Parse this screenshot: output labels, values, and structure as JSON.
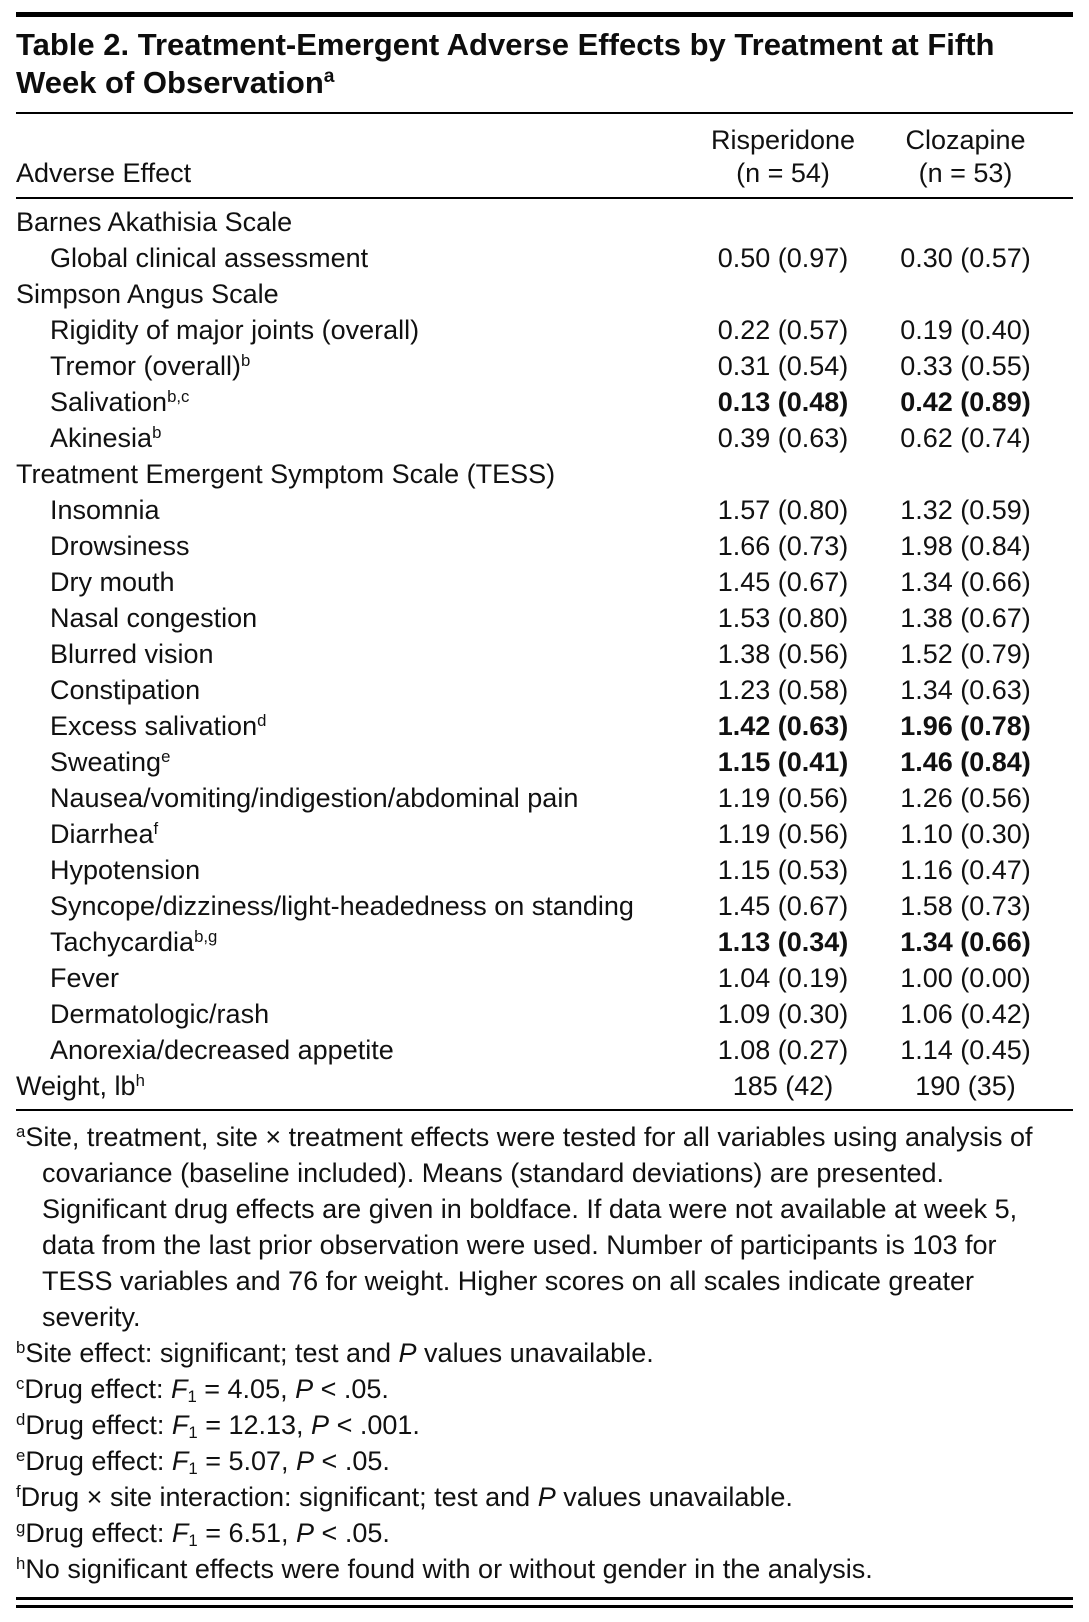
{
  "table": {
    "title": "Table 2. Treatment-Emergent Adverse Effects by Treatment at Fifth Week of Observation",
    "title_sup": "a",
    "header": {
      "adverse_effect": "Adverse Effect",
      "risperidone": "Risperidone",
      "risperidone_n": "(n = 54)",
      "clozapine": "Clozapine",
      "clozapine_n": "(n = 53)"
    },
    "rows": [
      {
        "label": "Barnes Akathisia Scale",
        "sup": "",
        "indent": 0,
        "risperidone": "",
        "clozapine": "",
        "bold": false
      },
      {
        "label": "Global clinical assessment",
        "sup": "",
        "indent": 1,
        "risperidone": "0.50 (0.97)",
        "clozapine": "0.30 (0.57)",
        "bold": false
      },
      {
        "label": "Simpson Angus Scale",
        "sup": "",
        "indent": 0,
        "risperidone": "",
        "clozapine": "",
        "bold": false
      },
      {
        "label": "Rigidity of major joints (overall)",
        "sup": "",
        "indent": 1,
        "risperidone": "0.22 (0.57)",
        "clozapine": "0.19 (0.40)",
        "bold": false
      },
      {
        "label": "Tremor (overall)",
        "sup": "b",
        "indent": 1,
        "risperidone": "0.31 (0.54)",
        "clozapine": "0.33 (0.55)",
        "bold": false
      },
      {
        "label": "Salivation",
        "sup": "b,c",
        "indent": 1,
        "risperidone": "0.13 (0.48)",
        "clozapine": "0.42 (0.89)",
        "bold": true
      },
      {
        "label": "Akinesia",
        "sup": "b",
        "indent": 1,
        "risperidone": "0.39 (0.63)",
        "clozapine": "0.62 (0.74)",
        "bold": false
      },
      {
        "label": "Treatment Emergent Symptom Scale (TESS)",
        "sup": "",
        "indent": 0,
        "risperidone": "",
        "clozapine": "",
        "bold": false
      },
      {
        "label": "Insomnia",
        "sup": "",
        "indent": 1,
        "risperidone": "1.57 (0.80)",
        "clozapine": "1.32 (0.59)",
        "bold": false
      },
      {
        "label": "Drowsiness",
        "sup": "",
        "indent": 1,
        "risperidone": "1.66 (0.73)",
        "clozapine": "1.98 (0.84)",
        "bold": false
      },
      {
        "label": "Dry mouth",
        "sup": "",
        "indent": 1,
        "risperidone": "1.45 (0.67)",
        "clozapine": "1.34 (0.66)",
        "bold": false
      },
      {
        "label": "Nasal congestion",
        "sup": "",
        "indent": 1,
        "risperidone": "1.53 (0.80)",
        "clozapine": "1.38 (0.67)",
        "bold": false
      },
      {
        "label": "Blurred vision",
        "sup": "",
        "indent": 1,
        "risperidone": "1.38 (0.56)",
        "clozapine": "1.52 (0.79)",
        "bold": false
      },
      {
        "label": "Constipation",
        "sup": "",
        "indent": 1,
        "risperidone": "1.23 (0.58)",
        "clozapine": "1.34 (0.63)",
        "bold": false
      },
      {
        "label": "Excess salivation",
        "sup": "d",
        "indent": 1,
        "risperidone": "1.42 (0.63)",
        "clozapine": "1.96 (0.78)",
        "bold": true
      },
      {
        "label": "Sweating",
        "sup": "e",
        "indent": 1,
        "risperidone": "1.15 (0.41)",
        "clozapine": "1.46 (0.84)",
        "bold": true
      },
      {
        "label": "Nausea/vomiting/indigestion/abdominal pain",
        "sup": "",
        "indent": 1,
        "risperidone": "1.19 (0.56)",
        "clozapine": "1.26 (0.56)",
        "bold": false
      },
      {
        "label": "Diarrhea",
        "sup": "f",
        "indent": 1,
        "risperidone": "1.19 (0.56)",
        "clozapine": "1.10 (0.30)",
        "bold": false
      },
      {
        "label": "Hypotension",
        "sup": "",
        "indent": 1,
        "risperidone": "1.15 (0.53)",
        "clozapine": "1.16 (0.47)",
        "bold": false
      },
      {
        "label": "Syncope/dizziness/light-headedness on standing",
        "sup": "",
        "indent": 1,
        "risperidone": "1.45 (0.67)",
        "clozapine": "1.58 (0.73)",
        "bold": false
      },
      {
        "label": "Tachycardia",
        "sup": "b,g",
        "indent": 1,
        "risperidone": "1.13 (0.34)",
        "clozapine": "1.34 (0.66)",
        "bold": true
      },
      {
        "label": "Fever",
        "sup": "",
        "indent": 1,
        "risperidone": "1.04 (0.19)",
        "clozapine": "1.00 (0.00)",
        "bold": false
      },
      {
        "label": "Dermatologic/rash",
        "sup": "",
        "indent": 1,
        "risperidone": "1.09 (0.30)",
        "clozapine": "1.06 (0.42)",
        "bold": false
      },
      {
        "label": "Anorexia/decreased appetite",
        "sup": "",
        "indent": 1,
        "risperidone": "1.08 (0.27)",
        "clozapine": "1.14 (0.45)",
        "bold": false
      },
      {
        "label": "Weight, lb",
        "sup": "h",
        "indent": 0,
        "risperidone": "185 (42)",
        "clozapine": "190 (35)",
        "bold": false
      }
    ],
    "footnotes": [
      {
        "sup": "a",
        "parts": [
          {
            "t": "Site, treatment, site × treatment effects were tested for all variables using analysis of covariance (baseline included). Means (standard deviations) are presented. Significant drug effects are given in boldface. If data were not available at week 5, data from the last prior observation were used. Number of participants is 103 for TESS variables and 76 for weight. Higher scores on all scales indicate greater severity."
          }
        ]
      },
      {
        "sup": "b",
        "parts": [
          {
            "t": "Site effect: significant; test and "
          },
          {
            "t": "P",
            "i": true
          },
          {
            "t": " values unavailable."
          }
        ]
      },
      {
        "sup": "c",
        "parts": [
          {
            "t": "Drug effect: "
          },
          {
            "t": "F",
            "i": true
          },
          {
            "t": "1",
            "sub": true
          },
          {
            "t": " = 4.05, "
          },
          {
            "t": "P",
            "i": true
          },
          {
            "t": " < .05."
          }
        ]
      },
      {
        "sup": "d",
        "parts": [
          {
            "t": "Drug effect: "
          },
          {
            "t": "F",
            "i": true
          },
          {
            "t": "1",
            "sub": true
          },
          {
            "t": " = 12.13, "
          },
          {
            "t": "P",
            "i": true
          },
          {
            "t": " < .001."
          }
        ]
      },
      {
        "sup": "e",
        "parts": [
          {
            "t": "Drug effect: "
          },
          {
            "t": "F",
            "i": true
          },
          {
            "t": "1",
            "sub": true
          },
          {
            "t": " = 5.07, "
          },
          {
            "t": "P",
            "i": true
          },
          {
            "t": " < .05."
          }
        ]
      },
      {
        "sup": "f",
        "parts": [
          {
            "t": "Drug × site interaction: significant; test and "
          },
          {
            "t": "P",
            "i": true
          },
          {
            "t": " values unavailable."
          }
        ]
      },
      {
        "sup": "g",
        "parts": [
          {
            "t": "Drug effect: "
          },
          {
            "t": "F",
            "i": true
          },
          {
            "t": "1",
            "sub": true
          },
          {
            "t": " = 6.51, "
          },
          {
            "t": "P",
            "i": true
          },
          {
            "t": " < .05."
          }
        ]
      },
      {
        "sup": "h",
        "parts": [
          {
            "t": "No significant effects were found with or without gender in the analysis."
          }
        ]
      }
    ]
  }
}
